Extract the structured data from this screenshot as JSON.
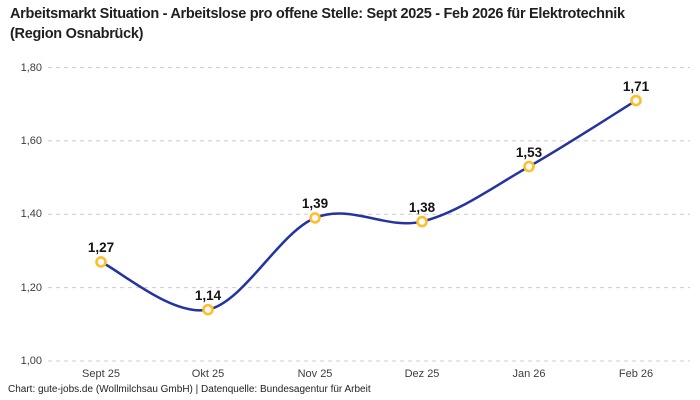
{
  "title": "Arbeitsmarkt Situation - Arbeitslose pro offene Stelle: Sept 2025 - Feb 2026 für Elektrotechnik (Region Osnabrück)",
  "footer": "Chart: gute-jobs.de (Wollmilchsau GmbH) | Datenquelle: Bundesagentur für Arbeit",
  "chart_data": {
    "type": "line",
    "title": "Arbeitsmarkt Situation - Arbeitslose pro offene Stelle: Sept 2025 - Feb 2026 für Elektrotechnik (Region Osnabrück)",
    "categories": [
      "Sept 25",
      "Okt 25",
      "Nov 25",
      "Dez 25",
      "Jan 26",
      "Feb 26"
    ],
    "values": [
      1.27,
      1.14,
      1.39,
      1.38,
      1.53,
      1.71
    ],
    "point_labels": [
      "1,27",
      "1,14",
      "1,39",
      "1,38",
      "1,53",
      "1,71"
    ],
    "y_ticks": [
      1.0,
      1.2,
      1.4,
      1.6,
      1.8
    ],
    "y_tick_labels": [
      "1,00",
      "1,20",
      "1,40",
      "1,60",
      "1,80"
    ],
    "ylim": [
      1.0,
      1.8
    ],
    "xlabel": "",
    "ylabel": "",
    "grid": "horizontal-dashed",
    "legend": "none",
    "smooth": true,
    "colors": {
      "line": "#2333a0",
      "marker_ring": "#ffbe2b",
      "marker_fill": "#ffffff",
      "gridline": "#cccccc",
      "tick_text": "#3d3d3d",
      "label_text": "#141414"
    }
  }
}
